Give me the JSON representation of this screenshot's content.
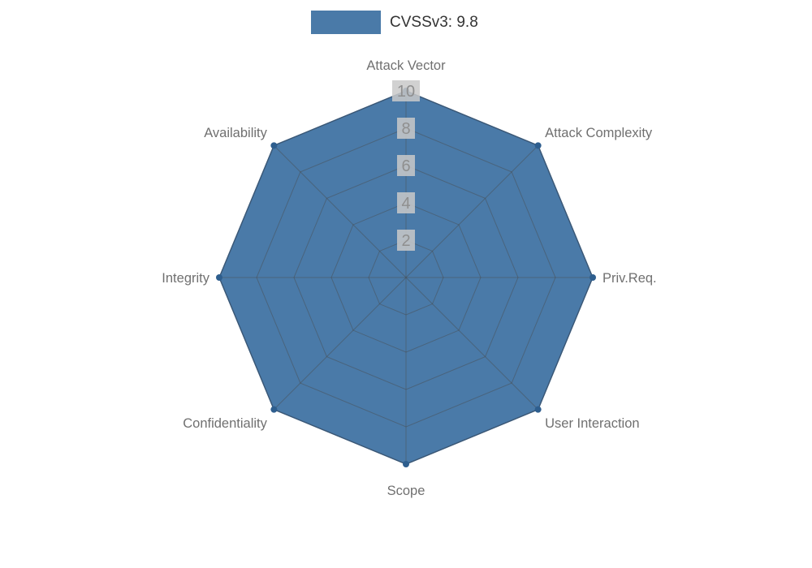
{
  "legend": {
    "label": "CVSSv3: 9.8"
  },
  "chart_data": {
    "type": "radar",
    "title": "CVSSv3: 9.8",
    "categories": [
      "Attack Vector",
      "Attack Complexity",
      "Priv.Req.",
      "User Interaction",
      "Scope",
      "Confidentiality",
      "Integrity",
      "Availability"
    ],
    "series": [
      {
        "name": "CVSSv3: 9.8",
        "values": [
          10,
          10,
          10,
          10,
          10,
          10,
          10,
          10
        ]
      }
    ],
    "ticks": [
      2,
      4,
      6,
      8,
      10
    ],
    "rmax": 10,
    "grid": true,
    "legend_position": "top",
    "colors": {
      "fill": "#4a7aa8",
      "stroke": "#36618e",
      "marker": "#2e5e8e",
      "grid": "#4a4a4a",
      "tick_text": "#8f8f8f",
      "tick_bg": "#c9c9c9",
      "axis_label": "#707070"
    }
  }
}
